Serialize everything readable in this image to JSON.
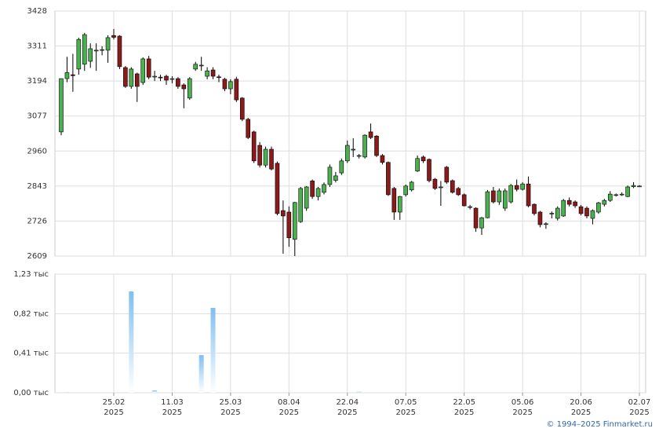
{
  "chart_data": [
    {
      "type": "candlestick",
      "up_color": "#4caf50",
      "down_color": "#8b1a1a",
      "grid": true,
      "ylim": [
        2609,
        3428
      ],
      "yticks": [
        2609,
        2726,
        2843,
        2960,
        3077,
        3194,
        3311,
        3428
      ],
      "open": [
        3024,
        3202,
        3215,
        3234,
        3250,
        3260,
        3297,
        3297,
        3297,
        3346,
        3344,
        3239,
        3176,
        3218,
        3189,
        3268,
        3210,
        3207,
        3210,
        3200,
        3202,
        3181,
        3137,
        3234,
        3247,
        3210,
        3231,
        3208,
        3200,
        3168,
        3200,
        3137,
        3066,
        3024,
        2979,
        2913,
        2966,
        2919,
        2761,
        2756,
        2665,
        2724,
        2769,
        2860,
        2808,
        2822,
        2848,
        2862,
        2887,
        2927,
        2966,
        2945,
        2940,
        3024,
        3010,
        2945,
        2922,
        2835,
        2756,
        2814,
        2830,
        2893,
        2940,
        2932,
        2866,
        2840,
        2906,
        2861,
        2835,
        2814,
        2774,
        2769,
        2703,
        2737,
        2827,
        2790,
        2769,
        2790,
        2845,
        2832,
        2850,
        2782,
        2756,
        2717,
        2752,
        2735,
        2743,
        2795,
        2790,
        2774,
        2769,
        2735,
        2756,
        2782,
        2795,
        2812,
        2814,
        2808,
        2841,
        2843
      ],
      "high": [
        3202,
        3275,
        3285,
        3339,
        3355,
        3320,
        3320,
        3310,
        3347,
        3368,
        3347,
        3244,
        3240,
        3222,
        3273,
        3278,
        3228,
        3215,
        3215,
        3210,
        3207,
        3186,
        3207,
        3258,
        3275,
        3240,
        3240,
        3215,
        3205,
        3200,
        3208,
        3140,
        3071,
        3028,
        2990,
        2975,
        2975,
        2925,
        2795,
        2775,
        2790,
        2840,
        2843,
        2865,
        2840,
        2855,
        2915,
        2890,
        2935,
        2995,
        3003,
        2950,
        3016,
        3052,
        3013,
        2950,
        2925,
        2840,
        2810,
        2848,
        2860,
        2945,
        2945,
        2935,
        2870,
        2860,
        2910,
        2865,
        2840,
        2818,
        2780,
        2772,
        2740,
        2830,
        2840,
        2835,
        2835,
        2850,
        2865,
        2856,
        2875,
        2785,
        2760,
        2722,
        2758,
        2775,
        2800,
        2805,
        2795,
        2780,
        2775,
        2765,
        2790,
        2800,
        2826,
        2818,
        2822,
        2845,
        2856,
        2846
      ],
      "low": [
        3013,
        3190,
        3158,
        3215,
        3228,
        3238,
        3228,
        3280,
        3255,
        3333,
        3234,
        3171,
        3168,
        3124,
        3181,
        3200,
        3194,
        3194,
        3181,
        3186,
        3168,
        3103,
        3131,
        3228,
        3228,
        3200,
        3200,
        3190,
        3160,
        3150,
        3124,
        3060,
        3000,
        2920,
        2905,
        2905,
        2895,
        2745,
        2617,
        2640,
        2609,
        2720,
        2760,
        2800,
        2795,
        2815,
        2840,
        2855,
        2880,
        2920,
        2940,
        2935,
        2935,
        3000,
        2940,
        2915,
        2810,
        2730,
        2730,
        2808,
        2825,
        2890,
        2920,
        2855,
        2830,
        2777,
        2850,
        2818,
        2810,
        2775,
        2765,
        2690,
        2680,
        2735,
        2785,
        2780,
        2760,
        2785,
        2825,
        2828,
        2772,
        2745,
        2705,
        2700,
        2735,
        2728,
        2740,
        2775,
        2770,
        2745,
        2735,
        2715,
        2750,
        2775,
        2790,
        2808,
        2810,
        2806,
        2836,
        2840
      ],
      "close": [
        3202,
        3222,
        3212,
        3333,
        3349,
        3302,
        3297,
        3299,
        3339,
        3340,
        3242,
        3176,
        3234,
        3176,
        3268,
        3207,
        3210,
        3205,
        3197,
        3202,
        3176,
        3168,
        3202,
        3250,
        3247,
        3228,
        3210,
        3206,
        3168,
        3192,
        3131,
        3066,
        3005,
        2927,
        2913,
        2966,
        2900,
        2751,
        2743,
        2670,
        2788,
        2835,
        2840,
        2808,
        2835,
        2848,
        2906,
        2877,
        2927,
        2979,
        2966,
        2945,
        3013,
        3005,
        2945,
        2922,
        2814,
        2756,
        2808,
        2843,
        2856,
        2935,
        2927,
        2861,
        2835,
        2840,
        2856,
        2822,
        2814,
        2777,
        2774,
        2703,
        2737,
        2824,
        2790,
        2827,
        2827,
        2845,
        2832,
        2850,
        2777,
        2751,
        2714,
        2717,
        2752,
        2769,
        2795,
        2782,
        2777,
        2751,
        2743,
        2761,
        2787,
        2795,
        2816,
        2814,
        2816,
        2840,
        2845,
        2843
      ]
    },
    {
      "type": "bar",
      "color": "#7fbfef",
      "grid": true,
      "ylim": [
        0,
        1.23
      ],
      "yticks": [
        {
          "value": 0,
          "label": "0,00 тыс"
        },
        {
          "value": 0.41,
          "label": "0,41 тыс"
        },
        {
          "value": 0.82,
          "label": "0,82 тыс"
        },
        {
          "value": 1.23,
          "label": "1,23 тыс"
        }
      ],
      "categories": [
        null,
        null,
        null,
        null,
        null,
        null,
        null,
        null,
        null,
        "25.02\n2025",
        null,
        null,
        null,
        null,
        null,
        null,
        null,
        null,
        null,
        "11.03\n2025",
        null,
        null,
        null,
        null,
        null,
        null,
        null,
        null,
        null,
        "25.03\n2025",
        null,
        null,
        null,
        null,
        null,
        null,
        null,
        null,
        null,
        "08.04\n2025",
        null,
        null,
        null,
        null,
        null,
        null,
        null,
        null,
        null,
        "22.04\n2025",
        null,
        null,
        null,
        null,
        null,
        null,
        null,
        null,
        null,
        "07.05\n2025",
        null,
        null,
        null,
        null,
        null,
        null,
        null,
        null,
        null,
        "22.05\n2025",
        null,
        null,
        null,
        null,
        null,
        null,
        null,
        null,
        null,
        "05.06\n2025",
        null,
        null,
        null,
        null,
        null,
        null,
        null,
        null,
        null,
        "20.06\n2025",
        null,
        null,
        null,
        null,
        null,
        null,
        null,
        null,
        null,
        "02.07\n2025"
      ],
      "values": [
        0,
        0.005,
        0,
        0,
        0,
        0,
        0,
        0,
        0,
        0,
        0,
        0,
        1.05,
        0,
        0,
        0,
        0.025,
        0,
        0,
        0,
        0,
        0,
        0,
        0,
        0.39,
        0,
        0.88,
        0,
        0,
        0,
        0,
        0,
        0,
        0,
        0,
        0,
        0,
        0,
        0,
        0,
        0,
        0,
        0,
        0,
        0,
        0,
        0,
        0,
        0,
        0,
        0,
        0.01,
        0,
        0,
        0,
        0,
        0,
        0,
        0,
        0,
        0,
        0,
        0,
        0,
        0,
        0,
        0,
        0,
        0,
        0,
        0,
        0,
        0,
        0,
        0,
        0,
        0,
        0,
        0,
        0,
        0,
        0,
        0,
        0,
        0,
        0,
        0,
        0,
        0,
        0,
        0,
        0,
        0,
        0,
        0,
        0,
        0,
        0,
        0,
        0
      ]
    }
  ],
  "copyright": "© 1994–2025 Finmarket.ru"
}
